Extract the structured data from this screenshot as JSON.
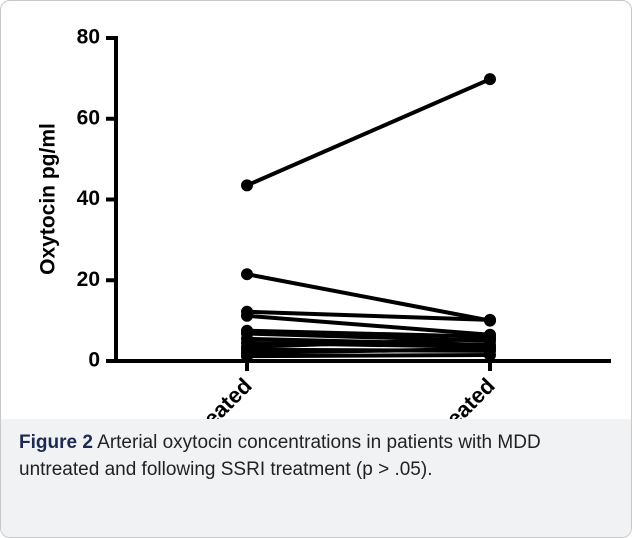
{
  "chart_data": {
    "type": "line",
    "y_label": "Oxytocin pg/ml",
    "categories": [
      "untreated",
      "treated"
    ],
    "series": [
      {
        "color": "#000000",
        "values": [
          43.5,
          69.8
        ]
      },
      {
        "color": "#000000",
        "values": [
          21.5,
          10
        ]
      },
      {
        "color": "#000000",
        "values": [
          12.2,
          10.2
        ]
      },
      {
        "color": "#000000",
        "values": [
          11.2,
          6.5
        ]
      },
      {
        "color": "#000000",
        "values": [
          7.5,
          6
        ]
      },
      {
        "color": "#000000",
        "values": [
          6.8,
          5
        ]
      },
      {
        "color": "#000000",
        "values": [
          5.5,
          4
        ]
      },
      {
        "color": "#000000",
        "values": [
          4.5,
          3.5
        ]
      },
      {
        "color": "#000000",
        "values": [
          3.5,
          5.5
        ]
      },
      {
        "color": "#000000",
        "values": [
          2.8,
          2.5
        ]
      },
      {
        "color": "#000000",
        "values": [
          2,
          3
        ]
      },
      {
        "color": "#000000",
        "values": [
          1.2,
          1.5
        ]
      }
    ],
    "ylim": [
      0,
      80
    ],
    "yticks": [
      0,
      20,
      40,
      60,
      80
    ],
    "caption_label": "Figure 2",
    "caption": "Arterial oxytocin concentrations in patients with MDD untreated and following SSRI treatment (p > .05)."
  }
}
